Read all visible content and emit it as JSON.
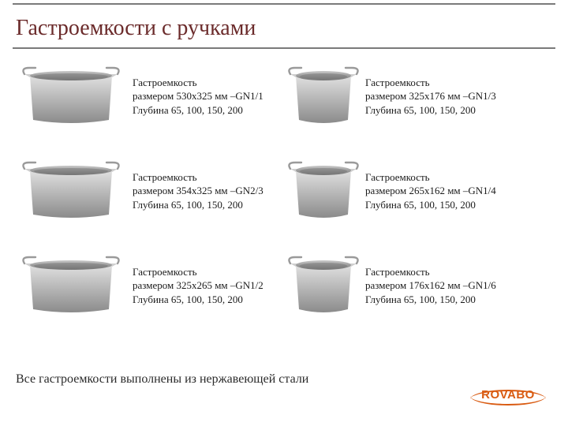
{
  "title": "Гастроемкости с ручками",
  "items": [
    {
      "line1": "Гастроемкость",
      "line2": "размером 530х325 мм –GN1/1",
      "line3": "Глубина 65, 100, 150, 200",
      "narrow": false
    },
    {
      "line1": "Гастроемкость",
      "line2": "размером 325х176 мм –GN1/3",
      "line3": "Глубина 65, 100, 150, 200",
      "narrow": true
    },
    {
      "line1": "Гастроемкость",
      "line2": "размером 354х325 мм –GN2/3",
      "line3": "Глубина 65, 100, 150, 200",
      "narrow": false
    },
    {
      "line1": "Гастроемкость",
      "line2": "размером 265х162 мм –GN1/4",
      "line3": "Глубина 65, 100, 150, 200",
      "narrow": true
    },
    {
      "line1": "Гастроемкость",
      "line2": "размером 325х265 мм –GN1/2",
      "line3": "Глубина 65, 100, 150, 200",
      "narrow": false
    },
    {
      "line1": "Гастроемкость",
      "line2": "размером 176х162 мм –GN1/6",
      "line3": "Глубина 65, 100, 150, 200",
      "narrow": true
    }
  ],
  "footer": "Все гастроемкости выполнены из нержавеющей стали",
  "logo_text": "ROVABO",
  "pan": {
    "outer_top": "#e0e0e0",
    "outer_bot": "#8b8b8b",
    "inner_top": "#c8c8c8",
    "inner_bot": "#747474",
    "rim": "#cfcfcf",
    "handle": "#9a9a9a"
  }
}
